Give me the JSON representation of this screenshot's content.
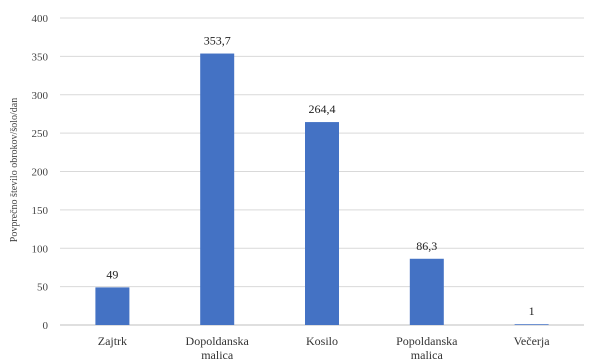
{
  "chart_data": {
    "type": "bar",
    "title": "",
    "xlabel": "",
    "ylabel": "Povprečno število obrokov/šolo/dan",
    "categories": [
      "Zajtrk",
      "Dopoldanska malica",
      "Kosilo",
      "Popoldanska malica",
      "Večerja"
    ],
    "category_lines": [
      [
        "Zajtrk"
      ],
      [
        "Dopoldanska",
        "malica"
      ],
      [
        "Kosilo"
      ],
      [
        "Popoldanska",
        "malica"
      ],
      [
        "Večerja"
      ]
    ],
    "values": [
      49,
      353.7,
      264.4,
      86.3,
      1
    ],
    "data_labels": [
      "49",
      "353,7",
      "264,4",
      "86,3",
      "1"
    ],
    "ylim": [
      0,
      400
    ],
    "yticks": [
      0,
      50,
      100,
      150,
      200,
      250,
      300,
      350,
      400
    ],
    "grid": true,
    "legend": "none",
    "bar_color": "#4472c4"
  }
}
